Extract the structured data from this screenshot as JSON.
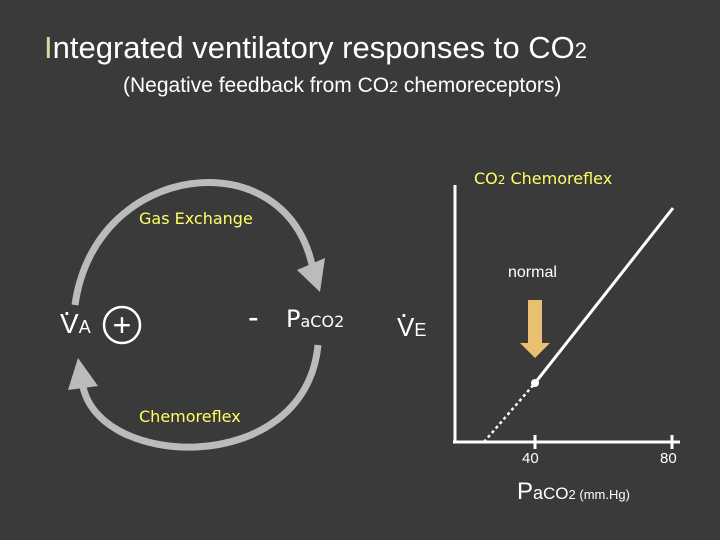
{
  "title": {
    "first_letter": "I",
    "rest": "ntegrated ventilatory responses to CO",
    "sub": "2"
  },
  "subtitle": {
    "part1": "(Negative feedback from CO",
    "sub": "2",
    "part2": " chemoreceptors)"
  },
  "loop": {
    "top_label": "Gas Exchange",
    "bottom_label": "Chemoreflex",
    "left_node_main": "V",
    "left_node_sub": "A",
    "left_sign": "+",
    "right_sign": "-",
    "right_node_main": "P",
    "right_node_rest": "a",
    "right_node_co": "CO",
    "right_node_sub": "2",
    "output_main": "V",
    "output_sub": "E"
  },
  "graph": {
    "chemoreflex_label_co": "CO",
    "chemoreflex_label_sub": "2",
    "chemoreflex_label_rest": " Chemoreflex",
    "normal_label": "normal",
    "tick_40": "40",
    "tick_80": "80",
    "xaxis_p": "P",
    "xaxis_a": "a",
    "xaxis_co": "CO",
    "xaxis_sub": "2",
    "xaxis_units": " (mm.Hg)"
  },
  "colors": {
    "background": "#3a3a3a",
    "label_yellow": "#ffff66",
    "title_accent": "#c8e0a0",
    "arrow_gray": "#bbbbbb",
    "normal_arrow": "#e8c070"
  }
}
